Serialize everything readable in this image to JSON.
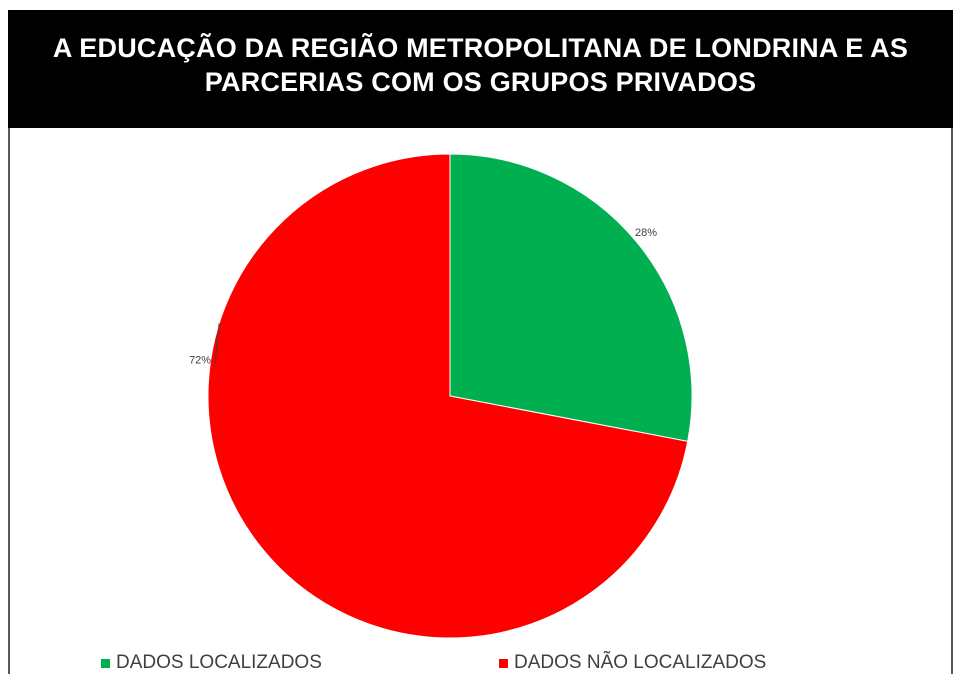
{
  "title": "A EDUCAÇÃO DA REGIÃO METROPOLITANA DE LONDRINA E AS PARCERIAS COM OS GRUPOS PRIVADOS",
  "chart_data": {
    "type": "pie",
    "title": "A EDUCAÇÃO DA REGIÃO METROPOLITANA DE LONDRINA E AS PARCERIAS COM OS GRUPOS PRIVADOS",
    "categories": [
      "DADOS LOCALIZADOS",
      "DADOS NÃO LOCALIZADOS"
    ],
    "values": [
      28,
      72
    ],
    "labels": [
      "28%",
      "72%"
    ],
    "colors": [
      "#00b050",
      "#ff0000"
    ],
    "legend_position": "bottom"
  }
}
